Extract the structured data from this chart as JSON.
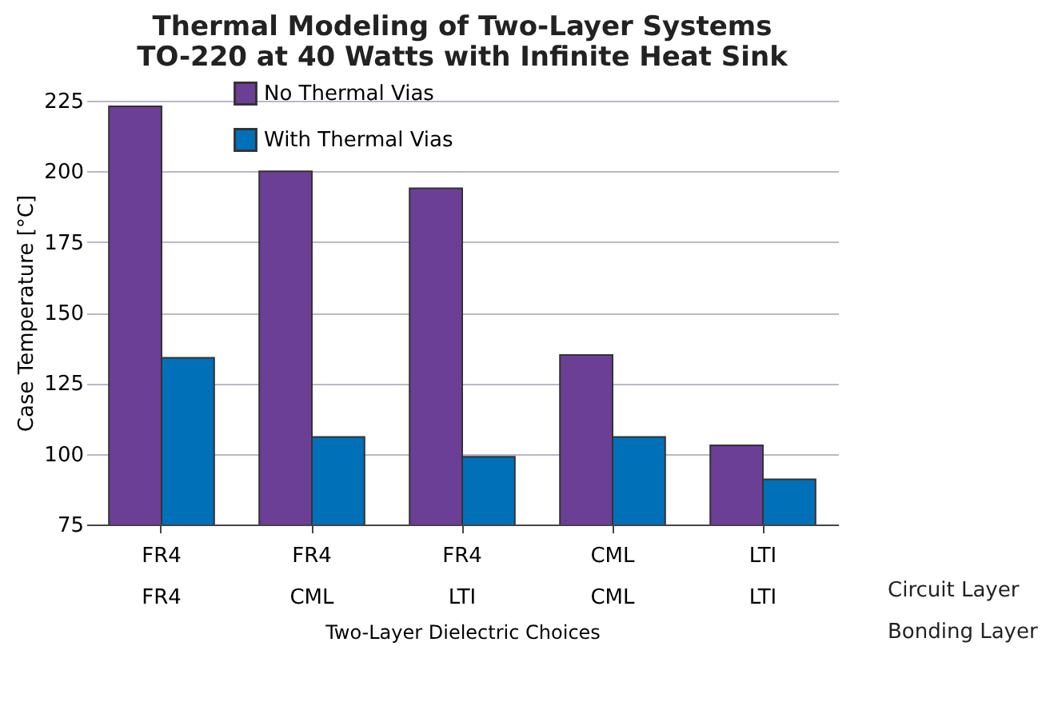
{
  "chart_data": {
    "type": "bar",
    "title": "Thermal Modeling of  Two-Layer Systems",
    "subtitle": "TO-220 at 40 Watts with Infinite Heat Sink",
    "xlabel": "Two-Layer Dielectric Choices",
    "ylabel": "Case Temperature [°C]",
    "categories": [
      "FR4\nFR4",
      "FR4\nCML",
      "FR4\nLTI",
      "CML\nCML",
      "LTI\nLTI"
    ],
    "annotations": [
      "Circuit Layer",
      "Bonding Layer"
    ],
    "series": [
      {
        "name": "No Thermal Vias",
        "color": "#6b3f96",
        "values": [
          223,
          200,
          194,
          135,
          103
        ]
      },
      {
        "name": "With Thermal Vias",
        "color": "#0070b8",
        "values": [
          134,
          106,
          99,
          106,
          91
        ]
      }
    ],
    "ylim": [
      75,
      225
    ],
    "yticks": [
      75,
      100,
      125,
      150,
      175,
      200,
      225
    ],
    "grid": "y",
    "legend": "top left"
  }
}
